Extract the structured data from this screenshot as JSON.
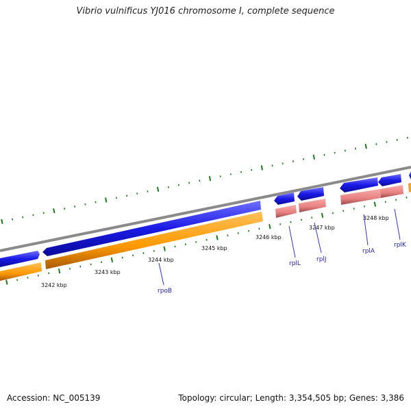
{
  "title": "Vibrio vulnificus YJ016 chromosome I, complete sequence",
  "accession_text": "Accession: NC_005139",
  "summary_text": "Topology: circular; Length: 3,354,505 bp; Genes: 3,386",
  "colors": {
    "backbone": "#888888",
    "gene_forward": "#1a1ae6",
    "gene_reverse": "#ff9900",
    "rrna_like": "#e88080",
    "tick_major": "#1a7a1a",
    "tick_minor": "#1a7a1a",
    "label_line": "#3333cc",
    "label_text": "#2222aa"
  },
  "scale_labels": [
    "3242 kbp",
    "3243 kbp",
    "3244 kbp",
    "3245 kbp",
    "3246 kbp",
    "3247 kbp",
    "3248 kbp"
  ],
  "gene_labels": [
    "rpoB",
    "rplL",
    "rplJ",
    "rplA",
    "rplK"
  ]
}
